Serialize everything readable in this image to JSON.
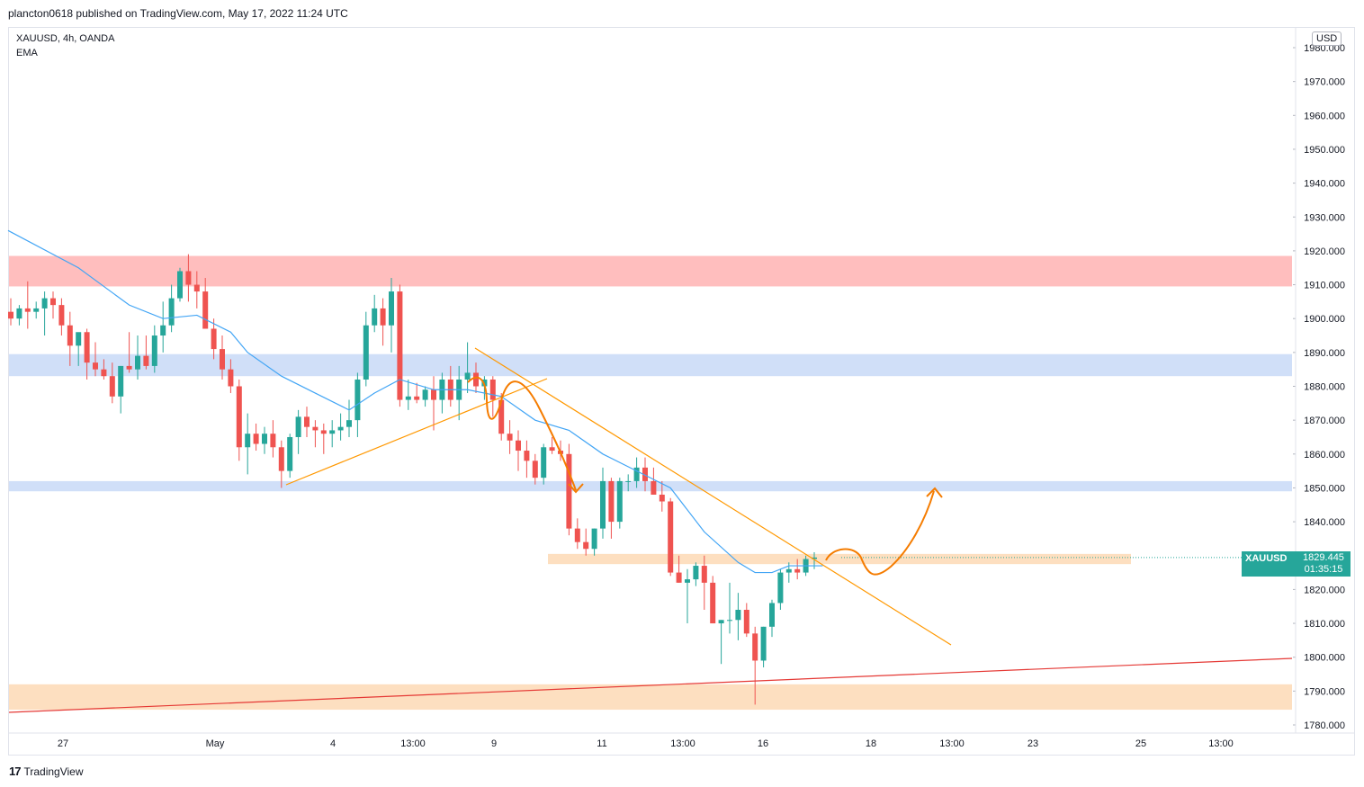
{
  "header": {
    "publisher_line": "plancton0618 published on TradingView.com, May 17, 2022 11:24 UTC"
  },
  "legend": {
    "symbol_line": "XAUUSD, 4h, OANDA",
    "indicator": "EMA"
  },
  "currency_badge": "USD",
  "price_tag": {
    "symbol": "XAUUSD",
    "price": "1829.445",
    "countdown": "01:35:15",
    "color": "#26a69a"
  },
  "footer": {
    "brand": "TradingView",
    "icon": "tradingview-logo-icon"
  },
  "colors": {
    "up": "#26a69a",
    "down": "#ef5350",
    "ema": "#42a5f5",
    "trendline": "#ff9800",
    "projection": "#f57c00",
    "support_line": "#e53935",
    "zone_red": "#ffb3b3",
    "zone_blue": "#c8d9f7",
    "zone_orange": "#fdd9b5"
  },
  "chart_data": {
    "type": "candlestick",
    "symbol": "XAUUSD",
    "timeframe": "4h",
    "y_axis": {
      "range": [
        1777,
        1988
      ],
      "ticks": [
        "1780.000",
        "1790.000",
        "1800.000",
        "1810.000",
        "1820.000",
        "1830.000",
        "1840.000",
        "1850.000",
        "1860.000",
        "1870.000",
        "1880.000",
        "1890.000",
        "1900.000",
        "1910.000",
        "1920.000",
        "1930.000",
        "1940.000",
        "1950.000",
        "1960.000",
        "1970.000",
        "1980.000"
      ]
    },
    "x_axis": {
      "ticks": [
        "27",
        "May",
        "4",
        "13:00",
        "9",
        "11",
        "13:00",
        "16",
        "18",
        "13:00",
        "23",
        "25",
        "13:00"
      ]
    },
    "zones": [
      {
        "name": "resistance-red",
        "low": 1909.5,
        "high": 1918.5
      },
      {
        "name": "resistance-blue",
        "low": 1883.0,
        "high": 1889.5
      },
      {
        "name": "support-blue",
        "low": 1849.0,
        "high": 1852.0
      },
      {
        "name": "current-orange",
        "low": 1827.5,
        "high": 1830.5
      },
      {
        "name": "support-orange",
        "low": 1784.5,
        "high": 1792.0
      }
    ],
    "candles": [
      [
        1902,
        1906,
        1898,
        1900
      ],
      [
        1900,
        1904,
        1898,
        1903
      ],
      [
        1903,
        1911,
        1897,
        1902
      ],
      [
        1902,
        1905,
        1900,
        1903
      ],
      [
        1903,
        1908,
        1895,
        1906
      ],
      [
        1906,
        1908,
        1900,
        1904
      ],
      [
        1904,
        1906,
        1895,
        1898
      ],
      [
        1898,
        1902,
        1886,
        1892
      ],
      [
        1892,
        1895,
        1886,
        1896
      ],
      [
        1896,
        1897,
        1882,
        1887
      ],
      [
        1887,
        1893,
        1883,
        1885
      ],
      [
        1885,
        1888,
        1882,
        1883
      ],
      [
        1883,
        1887,
        1875,
        1877
      ],
      [
        1877,
        1886,
        1872,
        1886
      ],
      [
        1886,
        1896,
        1884,
        1885
      ],
      [
        1885,
        1895,
        1882,
        1889
      ],
      [
        1889,
        1895,
        1885,
        1886
      ],
      [
        1886,
        1898,
        1884,
        1895
      ],
      [
        1895,
        1905,
        1890,
        1898
      ],
      [
        1898,
        1910,
        1896,
        1906
      ],
      [
        1906,
        1915,
        1905,
        1914
      ],
      [
        1914,
        1919,
        1905,
        1910
      ],
      [
        1910,
        1914,
        1903,
        1908
      ],
      [
        1908,
        1912,
        1898,
        1897
      ],
      [
        1897,
        1900,
        1888,
        1891
      ],
      [
        1891,
        1895,
        1882,
        1885
      ],
      [
        1885,
        1888,
        1878,
        1880
      ],
      [
        1880,
        1882,
        1858,
        1862
      ],
      [
        1862,
        1872,
        1854,
        1866
      ],
      [
        1866,
        1869,
        1861,
        1863
      ],
      [
        1863,
        1868,
        1860,
        1866
      ],
      [
        1866,
        1870,
        1859,
        1862
      ],
      [
        1862,
        1864,
        1850,
        1855
      ],
      [
        1855,
        1866,
        1853,
        1865
      ],
      [
        1865,
        1873,
        1860,
        1871
      ],
      [
        1871,
        1874,
        1865,
        1868
      ],
      [
        1868,
        1870,
        1862,
        1867
      ],
      [
        1867,
        1869,
        1860,
        1866
      ],
      [
        1866,
        1870,
        1862,
        1867
      ],
      [
        1867,
        1872,
        1864,
        1868
      ],
      [
        1868,
        1876,
        1865,
        1870
      ],
      [
        1870,
        1884,
        1865,
        1882
      ],
      [
        1882,
        1902,
        1880,
        1898
      ],
      [
        1898,
        1907,
        1896,
        1903
      ],
      [
        1903,
        1906,
        1892,
        1898
      ],
      [
        1898,
        1912,
        1890,
        1908
      ],
      [
        1908,
        1910,
        1874,
        1876
      ],
      [
        1876,
        1882,
        1873,
        1877
      ],
      [
        1877,
        1881,
        1875,
        1876
      ],
      [
        1876,
        1880,
        1874,
        1879
      ],
      [
        1879,
        1883,
        1867,
        1876
      ],
      [
        1876,
        1884,
        1872,
        1882
      ],
      [
        1882,
        1886,
        1874,
        1876
      ],
      [
        1876,
        1886,
        1870,
        1882
      ],
      [
        1882,
        1893,
        1878,
        1884
      ],
      [
        1884,
        1887,
        1878,
        1880
      ],
      [
        1880,
        1883,
        1876,
        1882
      ],
      [
        1882,
        1883,
        1871,
        1876
      ],
      [
        1876,
        1878,
        1864,
        1866
      ],
      [
        1866,
        1870,
        1860,
        1864
      ],
      [
        1864,
        1867,
        1855,
        1861
      ],
      [
        1861,
        1864,
        1853,
        1858
      ],
      [
        1858,
        1860,
        1851,
        1853
      ],
      [
        1853,
        1863,
        1851,
        1862
      ],
      [
        1862,
        1865,
        1860,
        1861
      ],
      [
        1861,
        1864,
        1858,
        1860
      ],
      [
        1860,
        1863,
        1836,
        1838
      ],
      [
        1838,
        1841,
        1832,
        1834
      ],
      [
        1834,
        1838,
        1830,
        1832
      ],
      [
        1832,
        1838,
        1830,
        1838
      ],
      [
        1838,
        1856,
        1835,
        1852
      ],
      [
        1852,
        1853,
        1835,
        1840
      ],
      [
        1840,
        1853,
        1838,
        1852
      ],
      [
        1852,
        1854,
        1849,
        1852
      ],
      [
        1852,
        1859,
        1850,
        1856
      ],
      [
        1856,
        1859,
        1849,
        1852
      ],
      [
        1852,
        1856,
        1848,
        1848
      ],
      [
        1848,
        1852,
        1843,
        1846
      ],
      [
        1846,
        1847,
        1824,
        1825
      ],
      [
        1825,
        1830,
        1822,
        1822
      ],
      [
        1822,
        1826,
        1810,
        1823
      ],
      [
        1823,
        1828,
        1821,
        1827
      ],
      [
        1827,
        1830,
        1814,
        1822
      ],
      [
        1822,
        1824,
        1810,
        1810
      ],
      [
        1810,
        1811,
        1798,
        1811
      ],
      [
        1811,
        1822,
        1807,
        1811
      ],
      [
        1811,
        1819,
        1805,
        1814
      ],
      [
        1814,
        1816,
        1806,
        1807
      ],
      [
        1807,
        1809,
        1786,
        1799
      ],
      [
        1799,
        1809,
        1797,
        1809
      ],
      [
        1809,
        1817,
        1806,
        1816
      ],
      [
        1816,
        1826,
        1814,
        1825
      ],
      [
        1825,
        1828,
        1822,
        1826
      ],
      [
        1826,
        1829,
        1823,
        1825
      ],
      [
        1825,
        1830,
        1824,
        1829
      ],
      [
        1829,
        1831,
        1826,
        1829.445
      ]
    ],
    "ema": [
      [
        0,
        1926
      ],
      [
        8,
        1915
      ],
      [
        14,
        1904
      ],
      [
        18,
        1900
      ],
      [
        22,
        1901
      ],
      [
        26,
        1896
      ],
      [
        28,
        1890
      ],
      [
        32,
        1883
      ],
      [
        36,
        1878
      ],
      [
        40,
        1873
      ],
      [
        43,
        1878
      ],
      [
        46,
        1882
      ],
      [
        50,
        1879
      ],
      [
        54,
        1879
      ],
      [
        58,
        1877
      ],
      [
        62,
        1870
      ],
      [
        66,
        1867
      ],
      [
        70,
        1860
      ],
      [
        74,
        1855
      ],
      [
        78,
        1850
      ],
      [
        82,
        1837
      ],
      [
        86,
        1828
      ],
      [
        88,
        1825
      ],
      [
        90,
        1825
      ],
      [
        92,
        1827
      ],
      [
        96,
        1827
      ]
    ]
  }
}
